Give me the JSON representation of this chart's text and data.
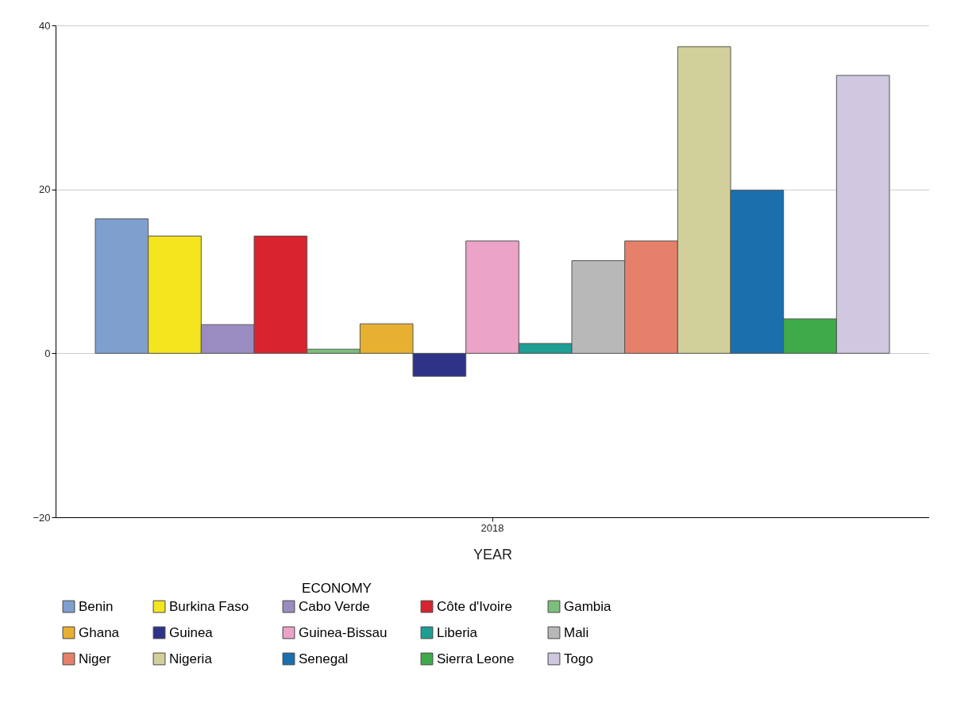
{
  "chart_data": {
    "type": "bar",
    "categories": [
      "2018"
    ],
    "xlabel": "YEAR",
    "legend_title": "ECONOMY",
    "ylim": [
      -20,
      40
    ],
    "yticks": [
      -20,
      0,
      20,
      40
    ],
    "grid": "y",
    "legend": "bottom",
    "series": [
      {
        "name": "Benin",
        "color": "#7f9fcf",
        "values": [
          16.4
        ]
      },
      {
        "name": "Burkina Faso",
        "color": "#f5e51f",
        "values": [
          14.3
        ]
      },
      {
        "name": "Cabo Verde",
        "color": "#9a8cc0",
        "values": [
          3.5
        ]
      },
      {
        "name": "Côte d'Ivoire",
        "color": "#d9232e",
        "values": [
          14.3
        ]
      },
      {
        "name": "Gambia",
        "color": "#7cbf7c",
        "values": [
          0.5
        ]
      },
      {
        "name": "Ghana",
        "color": "#e8b030",
        "values": [
          3.6
        ]
      },
      {
        "name": "Guinea",
        "color": "#2e3388",
        "values": [
          -2.8
        ]
      },
      {
        "name": "Guinea-Bissau",
        "color": "#eba3c7",
        "values": [
          13.7
        ]
      },
      {
        "name": "Liberia",
        "color": "#1e9e94",
        "values": [
          1.2
        ]
      },
      {
        "name": "Mali",
        "color": "#b8b8b8",
        "values": [
          11.3
        ]
      },
      {
        "name": "Niger",
        "color": "#e5806a",
        "values": [
          13.7
        ]
      },
      {
        "name": "Nigeria",
        "color": "#d2d09a",
        "values": [
          37.4
        ]
      },
      {
        "name": "Senegal",
        "color": "#1a6fad",
        "values": [
          19.9
        ]
      },
      {
        "name": "Sierra Leone",
        "color": "#3faa4a",
        "values": [
          4.2
        ]
      },
      {
        "name": "Togo",
        "color": "#cfc8e0",
        "values": [
          33.9
        ]
      }
    ]
  }
}
